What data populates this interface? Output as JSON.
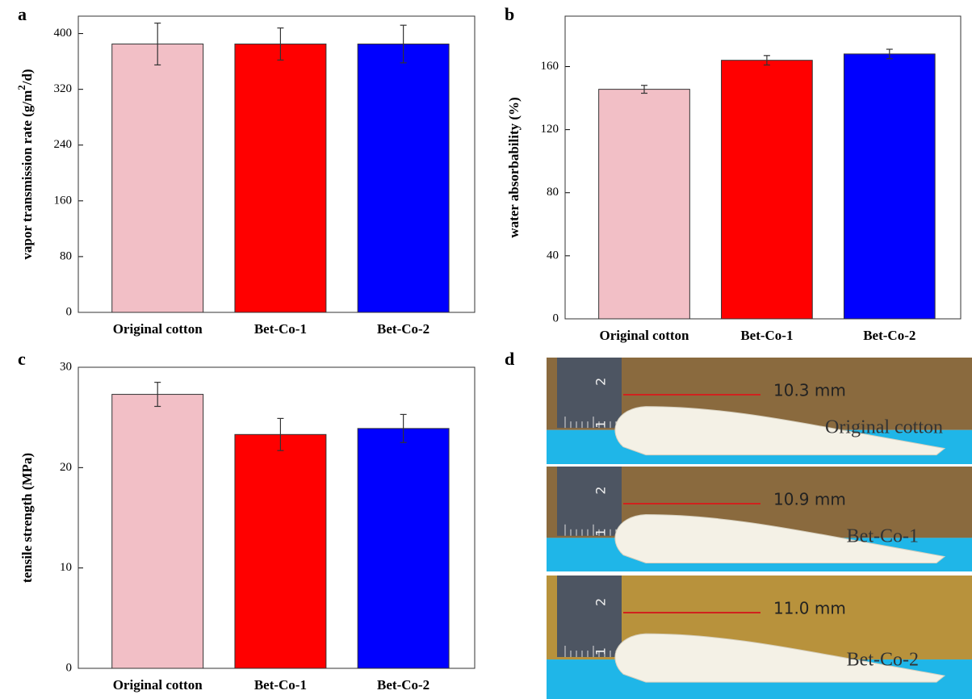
{
  "chart_data": [
    {
      "type": "bar",
      "panel_label": "a",
      "y_label": {
        "text": "vapor transmission rate (g/m",
        "superscript": "2",
        "tail": "/d)"
      },
      "categories": [
        "Original cotton",
        "Bet-Co-1",
        "Bet-Co-2"
      ],
      "values": [
        385,
        385,
        385
      ],
      "errors": [
        30,
        23,
        27
      ],
      "colors": [
        "#f2bfc6",
        "#ff0000",
        "#0000ff"
      ],
      "ylim": [
        0,
        425
      ],
      "yticks": [
        0,
        80,
        160,
        240,
        320,
        400
      ]
    },
    {
      "type": "bar",
      "panel_label": "b",
      "y_label": "water absorbability (%)",
      "categories": [
        "Original cotton",
        "Bet-Co-1",
        "Bet-Co-2"
      ],
      "values": [
        145.6,
        164,
        168
      ],
      "errors": [
        2.5,
        3,
        3
      ],
      "colors": [
        "#f2bfc6",
        "#ff0000",
        "#0000ff"
      ],
      "ylim": [
        0,
        192
      ],
      "yticks": [
        0,
        40,
        80,
        120,
        160
      ]
    },
    {
      "type": "bar",
      "panel_label": "c",
      "y_label": "tensile strength (MPa)",
      "categories": [
        "Original cotton",
        "Bet-Co-1",
        "Bet-Co-2"
      ],
      "values": [
        27.3,
        23.3,
        23.9
      ],
      "errors": [
        1.2,
        1.6,
        1.4
      ],
      "colors": [
        "#f2bfc6",
        "#ff0000",
        "#0000ff"
      ],
      "ylim": [
        0,
        30
      ],
      "yticks": [
        0,
        10,
        20,
        30
      ]
    }
  ],
  "photo": {
    "panel_label": "d",
    "ruler_marks": [
      "1",
      "2"
    ],
    "strips": [
      {
        "measurement": "10.3 mm",
        "sample": "Original cotton"
      },
      {
        "measurement": "10.9 mm",
        "sample": "Bet-Co-1"
      },
      {
        "measurement": "11.0 mm",
        "sample": "Bet-Co-2"
      }
    ]
  }
}
